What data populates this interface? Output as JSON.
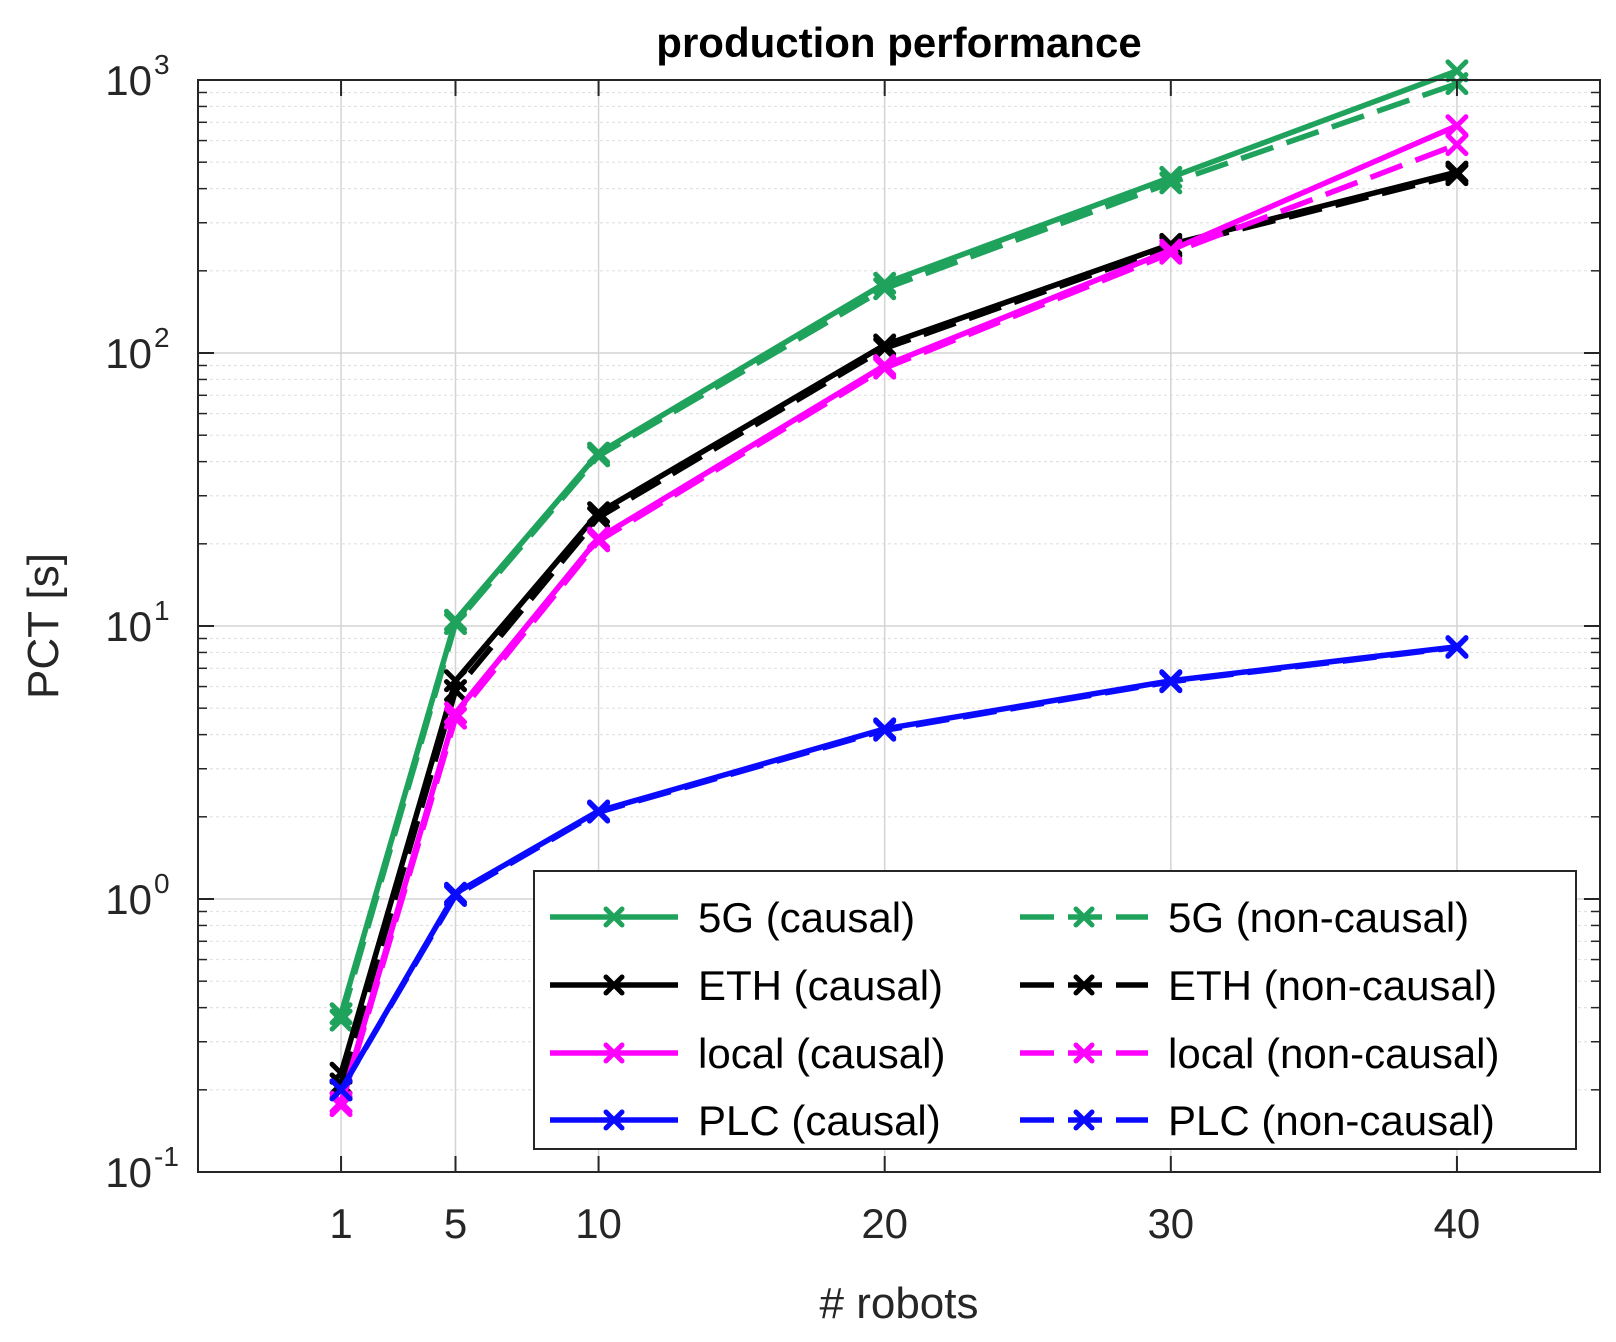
{
  "chart_data": {
    "type": "line",
    "title": "production performance",
    "xlabel": "# robots",
    "ylabel": "PCT [s]",
    "yscale": "log",
    "xlim": [
      -4,
      45
    ],
    "ylim": [
      0.1,
      1000
    ],
    "grid": true,
    "legend_position": "bottom-right",
    "x": [
      1,
      5,
      10,
      20,
      30,
      40
    ],
    "xticks": [
      {
        "value": 1,
        "label": "1"
      },
      {
        "value": 5,
        "label": "5"
      },
      {
        "value": 10,
        "label": "10"
      },
      {
        "value": 20,
        "label": "20"
      },
      {
        "value": 30,
        "label": "30"
      },
      {
        "value": 40,
        "label": "40"
      }
    ],
    "yticks": [
      {
        "value": 0.1,
        "base": "10",
        "exp": "-1"
      },
      {
        "value": 1,
        "base": "10",
        "exp": "0"
      },
      {
        "value": 10,
        "base": "10",
        "exp": "1"
      },
      {
        "value": 100,
        "base": "10",
        "exp": "2"
      },
      {
        "value": 1000,
        "base": "10",
        "exp": "3"
      }
    ],
    "series": [
      {
        "name": "5G (causal)",
        "color": "#1fa35c",
        "dash": "solid",
        "values": [
          0.38,
          10.5,
          43,
          180,
          440,
          1080
        ]
      },
      {
        "name": "5G (non-causal)",
        "color": "#1fa35c",
        "dash": "dashed",
        "values": [
          0.36,
          10.2,
          42,
          172,
          420,
          970
        ]
      },
      {
        "name": "ETH (causal)",
        "color": "#000000",
        "dash": "solid",
        "values": [
          0.23,
          6.3,
          26,
          107,
          250,
          460
        ]
      },
      {
        "name": "ETH (non-causal)",
        "color": "#000000",
        "dash": "dashed",
        "values": [
          0.21,
          5.8,
          25,
          104,
          245,
          450
        ]
      },
      {
        "name": "local (causal)",
        "color": "#ff00ff",
        "dash": "solid",
        "values": [
          0.18,
          4.8,
          21,
          90,
          238,
          680
        ]
      },
      {
        "name": "local (non-causal)",
        "color": "#ff00ff",
        "dash": "dashed",
        "values": [
          0.175,
          4.6,
          20.5,
          88,
          232,
          580
        ]
      },
      {
        "name": "PLC (causal)",
        "color": "#0a0aff",
        "dash": "solid",
        "values": [
          0.2,
          1.05,
          2.1,
          4.2,
          6.3,
          8.4
        ]
      },
      {
        "name": "PLC (non-causal)",
        "color": "#0a0aff",
        "dash": "dashed",
        "values": [
          0.2,
          1.03,
          2.08,
          4.15,
          6.25,
          8.35
        ]
      }
    ],
    "legend_order": [
      [
        "5G (causal)",
        "5G (non-causal)"
      ],
      [
        "ETH (causal)",
        "ETH (non-causal)"
      ],
      [
        "local (causal)",
        "local (non-causal)"
      ],
      [
        "PLC (causal)",
        "PLC (non-causal)"
      ]
    ]
  }
}
